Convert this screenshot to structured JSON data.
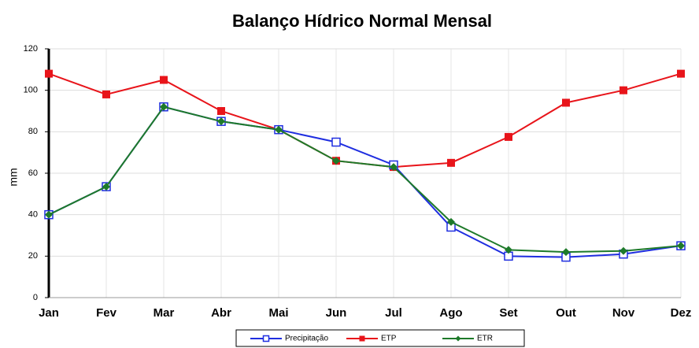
{
  "chart_data": {
    "type": "line",
    "title": "Balanço Hídrico Normal Mensal",
    "y_label": "mm",
    "categories": [
      "Jan",
      "Fev",
      "Mar",
      "Abr",
      "Mai",
      "Jun",
      "Jul",
      "Ago",
      "Set",
      "Out",
      "Nov",
      "Dez"
    ],
    "series": [
      {
        "name": "Precipitação",
        "color": "#1f2ee0",
        "marker": "square-open",
        "values": [
          40,
          53.5,
          92,
          85,
          81,
          75,
          64,
          34,
          20,
          19.5,
          21,
          25
        ]
      },
      {
        "name": "ETP",
        "color": "#e8141a",
        "marker": "square",
        "values": [
          108,
          98,
          105,
          90,
          81,
          66,
          63,
          65,
          77.5,
          94,
          100,
          108
        ]
      },
      {
        "name": "ETR",
        "color": "#1e7a2a",
        "marker": "diamond",
        "values": [
          40,
          53.5,
          92,
          85,
          81,
          66,
          63,
          36.5,
          23,
          22,
          22.5,
          25
        ]
      }
    ],
    "ylim": [
      0,
      120
    ],
    "yticks": [
      0,
      20,
      40,
      60,
      80,
      100,
      120
    ],
    "grid": true
  }
}
